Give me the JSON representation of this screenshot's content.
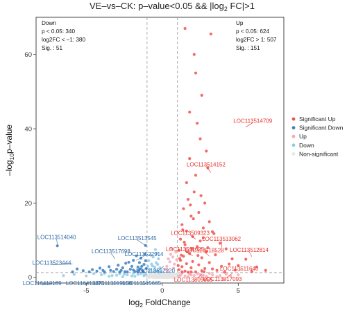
{
  "chart_data": {
    "type": "scatter",
    "title": {
      "pre": "VE–vs–CK: p–value<0.05 && |log",
      "sub": "2",
      "post": " FC|>1"
    },
    "xlabel": {
      "pre": "log",
      "sub": "2",
      "post": " FoldChange"
    },
    "ylabel": {
      "pre": "–log",
      "sub": "10",
      "post": "p–value"
    },
    "xlim": [
      -8.3,
      8.0
    ],
    "ylim": [
      -1.5,
      70
    ],
    "xticks": [
      -5,
      0,
      5
    ],
    "yticks": [
      0,
      20,
      40,
      60
    ],
    "thresholds": {
      "x": [
        -1,
        1
      ],
      "y": 1.3
    },
    "annotations": {
      "down": [
        "Down",
        "p < 0.05: 340",
        "log2FC < –1: 380",
        "Sig. : 51"
      ],
      "up": [
        "Up",
        "p < 0.05: 624",
        "log2FC > 1: 507",
        "Sig. : 151"
      ]
    },
    "legend": {
      "position": "right",
      "items": [
        {
          "name": "Significant Up",
          "color": "#f0524c"
        },
        {
          "name": "Significant Down",
          "color": "#3c7fbd"
        },
        {
          "name": "Up",
          "color": "#f6a8b6"
        },
        {
          "name": "Down",
          "color": "#8fcbe8"
        },
        {
          "name": "Non-significant",
          "color": "#e6e6e6"
        }
      ]
    },
    "series": [
      {
        "name": "Significant Up",
        "color": "#f0524c",
        "points": [
          [
            1.5,
            67
          ],
          [
            3.2,
            65.5
          ],
          [
            2.1,
            60
          ],
          [
            2.2,
            55
          ],
          [
            2.6,
            49
          ],
          [
            1.8,
            44.5
          ],
          [
            2.3,
            41.5
          ],
          [
            2.5,
            37.3
          ],
          [
            2.9,
            34
          ],
          [
            1.8,
            32
          ],
          [
            3.0,
            29.5
          ],
          [
            2.2,
            27.5
          ],
          [
            1.6,
            25.5
          ],
          [
            2.1,
            23
          ],
          [
            1.7,
            21
          ],
          [
            2.8,
            20
          ],
          [
            1.4,
            18.5
          ],
          [
            2.4,
            17.5
          ],
          [
            1.9,
            16.5
          ],
          [
            3.1,
            15
          ],
          [
            1.3,
            14.2
          ],
          [
            2.7,
            13.3
          ],
          [
            1.6,
            12.5
          ],
          [
            3.4,
            11.8
          ],
          [
            2.0,
            11
          ],
          [
            1.2,
            10.3
          ],
          [
            2.5,
            9.8
          ],
          [
            3.8,
            9.2
          ],
          [
            1.5,
            8.8
          ],
          [
            2.3,
            8.3
          ],
          [
            4.2,
            7.7
          ],
          [
            1.1,
            7.3
          ],
          [
            2.9,
            6.9
          ],
          [
            1.8,
            6.4
          ],
          [
            3.5,
            6.1
          ],
          [
            1.4,
            5.7
          ],
          [
            2.6,
            5.3
          ],
          [
            4.6,
            5.0
          ],
          [
            1.2,
            4.6
          ],
          [
            2.0,
            4.3
          ],
          [
            3.1,
            4.0
          ],
          [
            1.6,
            3.7
          ],
          [
            2.4,
            3.4
          ],
          [
            5.0,
            3.2
          ],
          [
            1.3,
            2.9
          ],
          [
            1.9,
            2.6
          ],
          [
            2.8,
            2.4
          ],
          [
            1.1,
            2.1
          ],
          [
            3.6,
            1.9
          ],
          [
            1.5,
            1.7
          ],
          [
            2.2,
            1.5
          ],
          [
            4.1,
            1.45
          ],
          [
            1.7,
            1.4
          ],
          [
            6.2,
            2.8
          ],
          [
            5.5,
            4.9
          ],
          [
            3.9,
            3.0
          ],
          [
            1.25,
            6.0
          ],
          [
            1.45,
            9.5
          ],
          [
            1.35,
            12.8
          ],
          [
            2.05,
            15.8
          ],
          [
            1.85,
            19.5
          ],
          [
            2.55,
            22.0
          ],
          [
            3.3,
            12.3
          ],
          [
            3.0,
            8.0
          ],
          [
            2.7,
            10.7
          ],
          [
            1.65,
            6.9
          ],
          [
            1.05,
            3.2
          ],
          [
            1.15,
            5.1
          ],
          [
            1.95,
            7.8
          ],
          [
            2.35,
            5.9
          ],
          [
            4.4,
            3.6
          ],
          [
            4.8,
            2.0
          ],
          [
            3.3,
            2.3
          ],
          [
            2.6,
            1.8
          ],
          [
            5.9,
            1.6
          ],
          [
            6.8,
            1.9
          ],
          [
            1.3,
            1.5
          ],
          [
            1.9,
            1.5
          ],
          [
            2.75,
            1.55
          ]
        ]
      },
      {
        "name": "Significant Down",
        "color": "#3c7fbd",
        "points": [
          [
            -6.9,
            8.5
          ],
          [
            -5.9,
            1.5
          ],
          [
            -1.1,
            8.6
          ],
          [
            -1.4,
            5.2
          ],
          [
            -1.9,
            4.6
          ],
          [
            -2.4,
            3.8
          ],
          [
            -2.9,
            3.3
          ],
          [
            -3.5,
            2.9
          ],
          [
            -4.1,
            2.5
          ],
          [
            -4.6,
            2.1
          ],
          [
            -5.2,
            1.8
          ],
          [
            -1.2,
            3.5
          ],
          [
            -1.6,
            2.8
          ],
          [
            -2.1,
            2.2
          ],
          [
            -2.7,
            1.9
          ],
          [
            -3.2,
            1.6
          ],
          [
            -3.8,
            1.5
          ],
          [
            -1.3,
            1.8
          ],
          [
            -1.8,
            1.6
          ],
          [
            -2.3,
            1.5
          ],
          [
            -1.05,
            2.4
          ],
          [
            -1.5,
            4.0
          ],
          [
            -2.0,
            3.0
          ],
          [
            -2.6,
            2.6
          ],
          [
            -3.0,
            2.2
          ],
          [
            -1.15,
            6.2
          ],
          [
            -1.7,
            5.8
          ],
          [
            -2.2,
            4.1
          ],
          [
            -4.3,
            1.7
          ],
          [
            -5.6,
            2.3
          ],
          [
            -1.25,
            1.45
          ],
          [
            -1.45,
            2.3
          ],
          [
            -3.4,
            1.9
          ],
          [
            -2.45,
            1.55
          ],
          [
            -1.9,
            2.0
          ],
          [
            -1.1,
            4.5
          ],
          [
            -1.35,
            3.0
          ],
          [
            -2.8,
            1.45
          ],
          [
            -1.6,
            1.5
          ],
          [
            -3.9,
            1.9
          ],
          [
            -4.8,
            1.5
          ],
          [
            -1.55,
            2.0
          ]
        ]
      },
      {
        "name": "Up",
        "color": "#f6a8b6",
        "points": [
          [
            1.2,
            0.6
          ],
          [
            1.5,
            0.4
          ],
          [
            1.8,
            0.9
          ],
          [
            2.1,
            0.5
          ],
          [
            2.5,
            0.8
          ],
          [
            2.9,
            0.3
          ],
          [
            3.3,
            0.7
          ],
          [
            3.8,
            0.5
          ],
          [
            4.2,
            0.9
          ],
          [
            1.3,
            1.1
          ],
          [
            1.7,
            0.2
          ],
          [
            2.3,
            1.0
          ],
          [
            2.7,
            0.6
          ],
          [
            3.1,
            1.1
          ],
          [
            3.6,
            0.2
          ],
          [
            4.5,
            0.4
          ],
          [
            5.0,
            0.7
          ],
          [
            1.1,
            0.3
          ],
          [
            1.9,
            0.7
          ],
          [
            2.6,
            0.2
          ],
          [
            0.3,
            3.0
          ],
          [
            0.5,
            4.2
          ],
          [
            0.7,
            5.5
          ],
          [
            0.9,
            6.8
          ],
          [
            0.2,
            2.2
          ],
          [
            0.6,
            7.8
          ],
          [
            0.8,
            3.6
          ],
          [
            0.4,
            5.0
          ],
          [
            0.35,
            1.8
          ],
          [
            0.75,
            2.5
          ],
          [
            0.55,
            6.2
          ],
          [
            0.95,
            4.8
          ]
        ]
      },
      {
        "name": "Down",
        "color": "#8fcbe8",
        "points": [
          [
            -0.3,
            1.8
          ],
          [
            -0.5,
            2.8
          ],
          [
            -0.7,
            3.6
          ],
          [
            -0.9,
            4.5
          ],
          [
            -0.2,
            1.4
          ],
          [
            -0.6,
            5.5
          ],
          [
            -0.8,
            2.2
          ],
          [
            -0.4,
            4.0
          ],
          [
            -0.35,
            6.5
          ],
          [
            -0.65,
            3.1
          ],
          [
            -0.15,
            2.6
          ],
          [
            -0.85,
            1.6
          ],
          [
            -0.55,
            1.5
          ],
          [
            -0.45,
            7.5
          ],
          [
            -0.75,
            6.0
          ],
          [
            -0.25,
            5.0
          ],
          [
            -0.95,
            3.0
          ],
          [
            -0.05,
            1.6
          ],
          [
            -0.5,
            2.0
          ],
          [
            -0.3,
            3.5
          ],
          [
            -1.2,
            0.5
          ],
          [
            -1.6,
            0.8
          ],
          [
            -2.0,
            0.4
          ],
          [
            -2.5,
            0.9
          ],
          [
            -3.0,
            0.6
          ],
          [
            -3.5,
            0.3
          ],
          [
            -4.0,
            0.7
          ],
          [
            -1.4,
            1.0
          ],
          [
            -1.8,
            0.3
          ],
          [
            -2.3,
            0.7
          ],
          [
            -2.8,
            1.0
          ],
          [
            -3.3,
            0.5
          ],
          [
            -4.5,
            1.0
          ],
          [
            -5.0,
            0.4
          ],
          [
            -5.8,
            0.8
          ],
          [
            -6.5,
            0.5
          ],
          [
            -1.1,
            0.8
          ],
          [
            -1.9,
            1.1
          ],
          [
            -2.6,
            0.2
          ],
          [
            -3.8,
            1.1
          ]
        ]
      }
    ],
    "labels": [
      {
        "text": "LOC113514709",
        "x": 5.5,
        "y": 40.5,
        "type": "up"
      },
      {
        "text": "LOC113514152",
        "x": 3.2,
        "y": 28.2,
        "type": "up"
      },
      {
        "text": "LOC113509323",
        "x": 2.2,
        "y": 10.3,
        "type": "up"
      },
      {
        "text": "LOC113513062",
        "x": 3.9,
        "y": 8.0,
        "type": "up"
      },
      {
        "text": "LOC113511625",
        "x": 2.0,
        "y": 5.8,
        "type": "up"
      },
      {
        "text": "LOC113518528",
        "x": 3.1,
        "y": 5.7,
        "type": "up"
      },
      {
        "text": "LOC113512814",
        "x": 5.9,
        "y": 5.6,
        "type": "up"
      },
      {
        "text": "LOC113511640",
        "x": 5.2,
        "y": 2.2,
        "type": "up"
      },
      {
        "text": "LOC113509855",
        "x": 2.6,
        "y": 0.9,
        "type": "up"
      },
      {
        "text": "LOC113517093",
        "x": 4.6,
        "y": 1.1,
        "type": "up"
      },
      {
        "text": "LOC113514040",
        "x": -6.9,
        "y": 8.5,
        "type": "down"
      },
      {
        "text": "LOC113513545",
        "x": -1.1,
        "y": 8.6,
        "type": "down"
      },
      {
        "text": "LOC113517698",
        "x": -3.1,
        "y": 5.0,
        "type": "down"
      },
      {
        "text": "LOC113522914",
        "x": -1.7,
        "y": 4.6,
        "type": "down"
      },
      {
        "text": "LOC113523444",
        "x": -5.9,
        "y": 3.6,
        "type": "down"
      },
      {
        "text": "LOC113512220",
        "x": 0.1,
        "y": 3.0,
        "type": "down"
      },
      {
        "text": "LOC116413189",
        "x": -6.9,
        "y": -1.3,
        "type": "down"
      },
      {
        "text": "LOC116413371",
        "x": -4.8,
        "y": -1.3,
        "type": "down"
      },
      {
        "text": "LOC113519158",
        "x": -3.0,
        "y": -1.3,
        "type": "down"
      },
      {
        "text": "LOC113515665",
        "x": -0.9,
        "y": -1.3,
        "type": "down"
      }
    ]
  }
}
